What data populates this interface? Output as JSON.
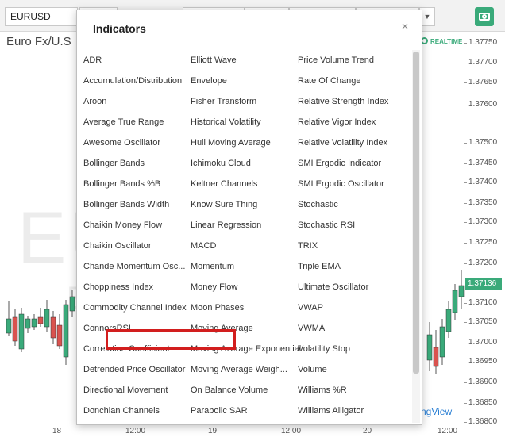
{
  "toolbar": {
    "symbol": "EURUSD"
  },
  "chart": {
    "title": "Euro Fx/U.S",
    "watermark_symbol": "EURUSD",
    "watermark_sub": "E",
    "realtime_label": "REALTIME",
    "branding": "ngView",
    "current_price": "1.37136",
    "accent_color": "#3aaa7a",
    "up_color": "#3aaa7a",
    "down_color": "#d9534f",
    "price_ticks": [
      "1.37750",
      "1.37700",
      "1.37650",
      "1.37600",
      "1.37500",
      "1.37450",
      "1.37400",
      "1.37350",
      "1.37300",
      "1.37250",
      "1.37200",
      "1.37100",
      "1.37050",
      "1.37000",
      "1.36950",
      "1.36900",
      "1.36850",
      "1.36800"
    ],
    "time_ticks": [
      "18",
      "12:00",
      "19",
      "12:00",
      "20",
      "12:00"
    ]
  },
  "dialog": {
    "title": "Indicators",
    "close_label": "×",
    "highlight_color": "#d21e1e",
    "highlighted_item": "Moving Average Exponential",
    "columns": [
      [
        "ADR",
        "Accumulation/Distribution",
        "Aroon",
        "Average True Range",
        "Awesome Oscillator",
        "Bollinger Bands",
        "Bollinger Bands %B",
        "Bollinger Bands Width",
        "Chaikin Money Flow",
        "Chaikin Oscillator",
        "Chande Momentum Osc...",
        "Choppiness Index",
        "Commodity Channel Index",
        "ConnorsRSI",
        "Correlation Coefficient",
        "Detrended Price Oscillator",
        "Directional Movement",
        "Donchian Channels"
      ],
      [
        "Elliott Wave",
        "Envelope",
        "Fisher Transform",
        "Historical Volatility",
        "Hull Moving Average",
        "Ichimoku Cloud",
        "Keltner Channels",
        "Know Sure Thing",
        "Linear Regression",
        "MACD",
        "Momentum",
        "Money Flow",
        "Moon Phases",
        "Moving Average",
        "Moving Average Exponential",
        "Moving Average Weigh...",
        "On Balance Volume",
        "Parabolic SAR"
      ],
      [
        "Price Volume Trend",
        "Rate Of Change",
        "Relative Strength Index",
        "Relative Vigor Index",
        "Relative Volatility Index",
        "SMI Ergodic Indicator",
        "SMI Ergodic Oscillator",
        "Stochastic",
        "Stochastic RSI",
        "TRIX",
        "Triple EMA",
        "Ultimate Oscillator",
        "VWAP",
        "VWMA",
        "Volatility Stop",
        "Volume",
        "Williams %R",
        "Williams Alligator"
      ]
    ]
  }
}
